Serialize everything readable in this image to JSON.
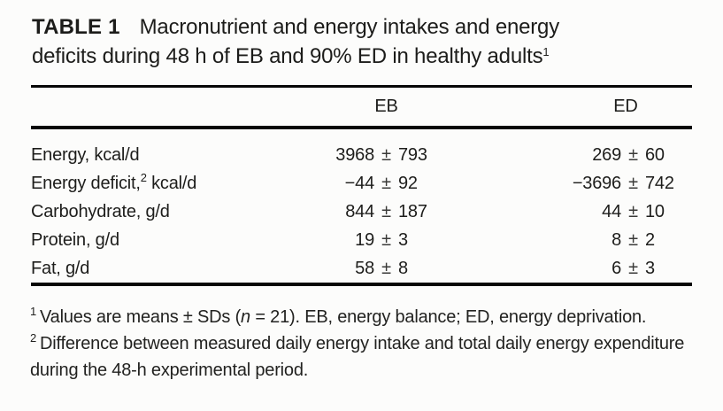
{
  "title": {
    "label": "TABLE 1",
    "line1": "Macronutrient and energy intakes and energy",
    "line2": "deficits during 48 h of EB and 90% ED in healthy adults",
    "footnote_ref": "1"
  },
  "table": {
    "pm": "±",
    "columns": [
      "EB",
      "ED"
    ],
    "rows": [
      {
        "label_pre": "Energy, kcal/d",
        "label_sup": "",
        "label_post": "",
        "eb_mean": "3968",
        "eb_sd": "793",
        "ed_mean": "269",
        "ed_sd": "60"
      },
      {
        "label_pre": "Energy deficit,",
        "label_sup": "2",
        "label_post": " kcal/d",
        "eb_mean": "−44",
        "eb_sd": "92",
        "ed_mean": "−3696",
        "ed_sd": "742"
      },
      {
        "label_pre": "Carbohydrate, g/d",
        "label_sup": "",
        "label_post": "",
        "eb_mean": "844",
        "eb_sd": "187",
        "ed_mean": "44",
        "ed_sd": "10"
      },
      {
        "label_pre": "Protein, g/d",
        "label_sup": "",
        "label_post": "",
        "eb_mean": "19",
        "eb_sd": "3",
        "ed_mean": "8",
        "ed_sd": "2"
      },
      {
        "label_pre": "Fat, g/d",
        "label_sup": "",
        "label_post": "",
        "eb_mean": "58",
        "eb_sd": "8",
        "ed_mean": "6",
        "ed_sd": "3"
      }
    ]
  },
  "footnotes": {
    "fn1": {
      "marker": "1",
      "pre": "Values are means ± SDs (",
      "italic_n": "n",
      "post": " = 21). EB, energy balance; ED, energy deprivation."
    },
    "fn2": {
      "marker": "2",
      "line1": "Difference between measured daily energy intake and total daily energy expenditure",
      "line2": "during the 48-h experimental period."
    }
  },
  "colors": {
    "background": "#fcfcfb",
    "text": "#1d1d1b",
    "rule": "#060606"
  }
}
